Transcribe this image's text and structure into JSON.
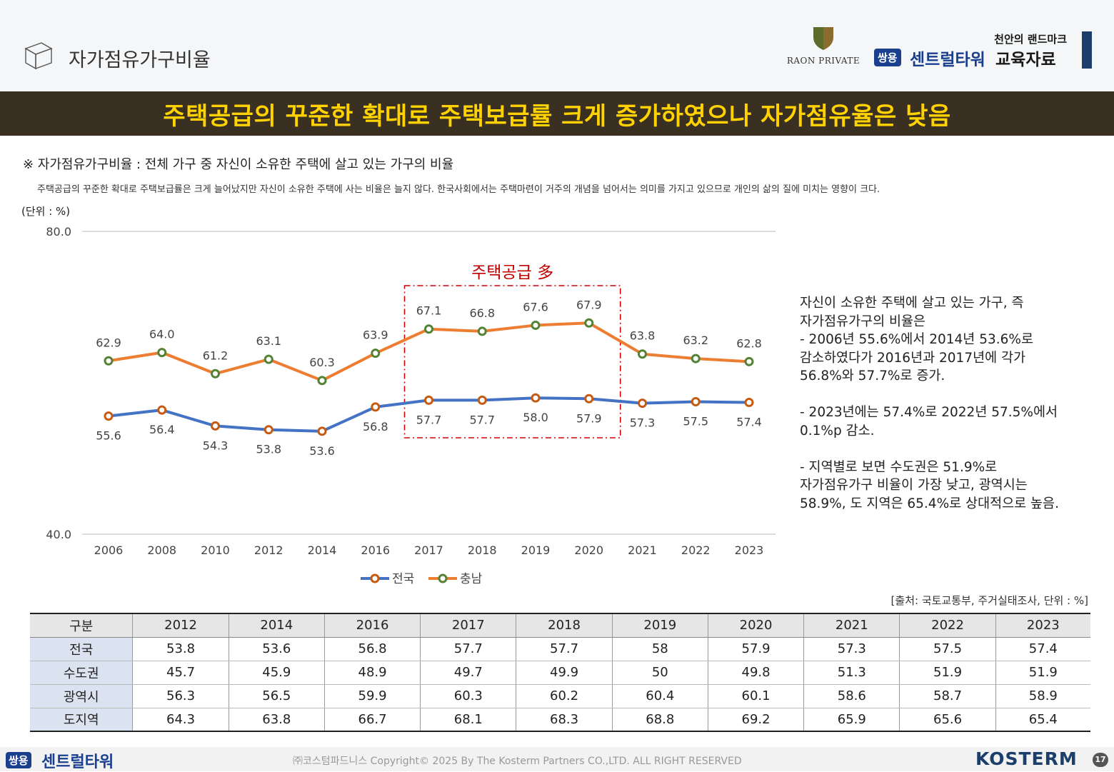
{
  "header": {
    "title": "자가점유가구비율",
    "raon_text": "RAON PRIVATE",
    "brand_tagline": "천안의 랜드마크",
    "brand_badge": "쌍용",
    "brand_name": "센트럴타워",
    "brand_suffix": "교육자료"
  },
  "banner": {
    "text": "주택공급의 꾸준한 확대로 주택보급률 크게 증가하였으나 자가점유율은 낮음"
  },
  "definition": "※ 자가점유가구비율 : 전체 가구 중 자신이 소유한 주택에 살고 있는 가구의 비율",
  "description": "주택공급의 꾸준한 확대로 주택보급률은 크게 늘어났지만 자신이 소유한 주택에 사는 비율은 늘지 않다. 한국사회에서는 주택마련이 거주의 개념을 넘어서는 의미를 가지고 있으므로 개인의 삶의 질에 미치는 영향이 크다.",
  "unit_label": "(단위 : %)",
  "chart_data": {
    "type": "line",
    "categories": [
      "2006",
      "2008",
      "2010",
      "2012",
      "2014",
      "2016",
      "2017",
      "2018",
      "2019",
      "2020",
      "2021",
      "2022",
      "2023"
    ],
    "series": [
      {
        "name": "전국",
        "color": "#4472c4",
        "marker_color": "#c55a11",
        "values": [
          55.6,
          56.4,
          54.3,
          53.8,
          53.6,
          56.8,
          57.7,
          57.7,
          58.0,
          57.9,
          57.3,
          57.5,
          57.4
        ]
      },
      {
        "name": "충남",
        "color": "#ed7d31",
        "marker_color": "#548235",
        "values": [
          62.9,
          64.0,
          61.2,
          63.1,
          60.3,
          63.9,
          67.1,
          66.8,
          67.6,
          67.9,
          63.8,
          63.2,
          62.8
        ]
      }
    ],
    "y_ticks": [
      "40.0",
      "80.0"
    ],
    "ylim": [
      40,
      80
    ],
    "grid": "horizontal",
    "legend_position": "bottom",
    "annotation": {
      "text": "주택공급 多",
      "color": "#c00000",
      "categories": [
        "2017",
        "2018",
        "2019",
        "2020"
      ]
    }
  },
  "side_text": "자신이 소유한 주택에 살고 있는 가구, 즉\n자가점유가구의 비율은\n- 2006년 55.6%에서 2014년 53.6%로\n감소하였다가 2016년과 2017년에 각가\n56.8%와 57.7%로 증가.\n\n- 2023년에는 57.4%로 2022년 57.5%에서\n0.1%p 감소.\n\n- 지역별로 보면 수도권은 51.9%로\n자가점유가구 비율이 가장 낮고, 광역시는\n58.9%, 도 지역은 65.4%로 상대적으로 높음.",
  "source": "[출처: 국토교통부, 주거실태조사, 단위 : %]",
  "table": {
    "header": [
      "구분",
      "2012",
      "2014",
      "2016",
      "2017",
      "2018",
      "2019",
      "2020",
      "2021",
      "2022",
      "2023"
    ],
    "rows": [
      [
        "전국",
        "53.8",
        "53.6",
        "56.8",
        "57.7",
        "57.7",
        "58",
        "57.9",
        "57.3",
        "57.5",
        "57.4"
      ],
      [
        "수도권",
        "45.7",
        "45.9",
        "48.9",
        "49.7",
        "49.9",
        "50",
        "49.8",
        "51.3",
        "51.9",
        "51.9"
      ],
      [
        "광역시",
        "56.3",
        "56.5",
        "59.9",
        "60.3",
        "60.2",
        "60.4",
        "60.1",
        "58.6",
        "58.7",
        "58.9"
      ],
      [
        "도지역",
        "64.3",
        "63.8",
        "66.7",
        "68.1",
        "68.3",
        "68.8",
        "69.2",
        "65.9",
        "65.6",
        "65.4"
      ]
    ]
  },
  "footer": {
    "badge": "쌍용",
    "brand": "센트럴타워",
    "copyright": "㈜코스텀파드니스 Copyright© 2025 By The Kosterm Partners CO.,LTD. ALL RIGHT RESERVED",
    "logo": "KOSTERM",
    "page": "17"
  }
}
